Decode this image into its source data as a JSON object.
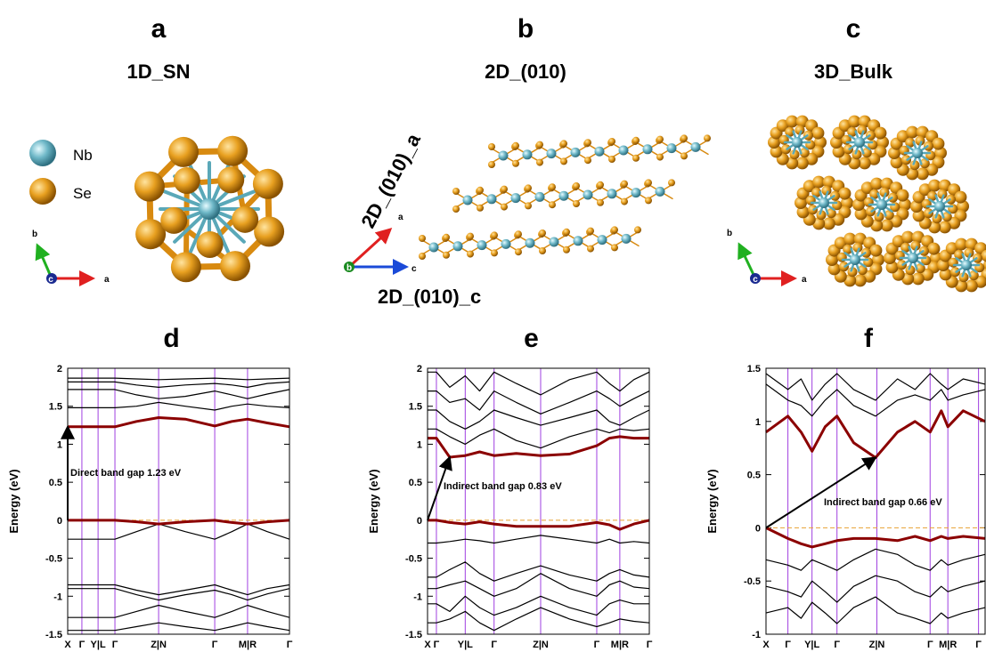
{
  "panels": [
    {
      "letter": "a",
      "title": "1D_SN",
      "legend": [
        "Nb",
        "Se"
      ],
      "axes": [
        "b",
        "c",
        "a"
      ]
    },
    {
      "letter": "b",
      "title": "2D_(010)",
      "axes": [
        "a",
        "b",
        "c"
      ],
      "axis_titles": [
        "2D_(010)_a",
        "2D_(010)_c"
      ]
    },
    {
      "letter": "c",
      "title": "3D_Bulk",
      "axes": [
        "b",
        "c",
        "a"
      ]
    }
  ],
  "chart_data": [
    {
      "type": "line",
      "panel_label": "d",
      "ylabel": "Energy (eV)",
      "annotation": "Direct band gap 1.23 eV",
      "gap_arrow": {
        "from": [
          0,
          0
        ],
        "to": [
          0,
          1.23
        ]
      },
      "fermi_level": 0,
      "fermi_color": "#e8a030",
      "vline_color": "#a040e0",
      "xlim": [
        0,
        1
      ],
      "ylim": [
        -1.5,
        2
      ],
      "xticks": [
        {
          "value": 0,
          "label": "X"
        },
        {
          "value": 0.064,
          "label": "Γ"
        },
        {
          "value": 0.137,
          "label": "Y|L"
        },
        {
          "value": 0.213,
          "label": "Γ"
        },
        {
          "value": 0.41,
          "label": "Z|N"
        },
        {
          "value": 0.663,
          "label": "Γ"
        },
        {
          "value": 0.811,
          "label": "M|R"
        },
        {
          "value": 1,
          "label": "Γ"
        }
      ],
      "yticks": [
        -1.5,
        -1,
        -0.5,
        0,
        0.5,
        1,
        1.5,
        2
      ],
      "x": [
        0,
        0.064,
        0.137,
        0.213,
        0.31,
        0.41,
        0.53,
        0.663,
        0.74,
        0.811,
        0.9,
        1
      ],
      "series": [
        {
          "color": "#8b0000",
          "values": [
            1.23,
            1.23,
            1.23,
            1.23,
            1.3,
            1.35,
            1.33,
            1.24,
            1.3,
            1.33,
            1.28,
            1.23
          ]
        },
        {
          "color": "#8b0000",
          "values": [
            0,
            0,
            0,
            0,
            -0.02,
            -0.05,
            -0.02,
            0,
            -0.03,
            -0.05,
            -0.02,
            0
          ]
        },
        {
          "color": "#000000",
          "values": [
            1.87,
            1.87,
            1.87,
            1.87,
            1.86,
            1.85,
            1.86,
            1.87,
            1.86,
            1.85,
            1.86,
            1.87
          ]
        },
        {
          "color": "#000000",
          "values": [
            1.82,
            1.82,
            1.82,
            1.82,
            1.78,
            1.75,
            1.78,
            1.8,
            1.78,
            1.75,
            1.8,
            1.82
          ]
        },
        {
          "color": "#000000",
          "values": [
            1.72,
            1.72,
            1.72,
            1.72,
            1.65,
            1.6,
            1.63,
            1.7,
            1.65,
            1.6,
            1.66,
            1.72
          ]
        },
        {
          "color": "#000000",
          "values": [
            1.48,
            1.48,
            1.48,
            1.48,
            1.5,
            1.55,
            1.5,
            1.45,
            1.5,
            1.53,
            1.5,
            1.48
          ]
        },
        {
          "color": "#000000",
          "values": [
            -0.25,
            -0.25,
            -0.25,
            -0.25,
            -0.15,
            -0.05,
            -0.15,
            -0.25,
            -0.15,
            -0.05,
            -0.15,
            -0.25
          ]
        },
        {
          "color": "#000000",
          "values": [
            -0.85,
            -0.85,
            -0.85,
            -0.85,
            -0.92,
            -0.98,
            -0.92,
            -0.85,
            -0.92,
            -0.98,
            -0.9,
            -0.85
          ]
        },
        {
          "color": "#000000",
          "values": [
            -0.9,
            -0.9,
            -0.9,
            -0.9,
            -0.98,
            -1.05,
            -0.98,
            -0.92,
            -0.98,
            -1.05,
            -0.97,
            -0.9
          ]
        },
        {
          "color": "#000000",
          "values": [
            -1.28,
            -1.28,
            -1.28,
            -1.28,
            -1.2,
            -1.12,
            -1.2,
            -1.28,
            -1.2,
            -1.12,
            -1.2,
            -1.28
          ]
        },
        {
          "color": "#000000",
          "values": [
            -1.45,
            -1.45,
            -1.45,
            -1.45,
            -1.4,
            -1.35,
            -1.4,
            -1.45,
            -1.4,
            -1.35,
            -1.4,
            -1.45
          ]
        }
      ]
    },
    {
      "type": "line",
      "panel_label": "e",
      "ylabel": "Energy (eV)",
      "annotation": "Indirect band gap 0.83 eV",
      "gap_arrow": {
        "from": [
          0,
          0
        ],
        "to": [
          0.1,
          0.83
        ]
      },
      "fermi_level": 0,
      "fermi_color": "#e8a030",
      "vline_color": "#a040e0",
      "xlim": [
        0,
        1
      ],
      "ylim": [
        -1.5,
        2
      ],
      "xticks": [
        {
          "value": 0,
          "label": "X"
        },
        {
          "value": 0.04,
          "label": "Γ"
        },
        {
          "value": 0.17,
          "label": "Y|L"
        },
        {
          "value": 0.3,
          "label": "Γ"
        },
        {
          "value": 0.51,
          "label": "Z|N"
        },
        {
          "value": 0.763,
          "label": "Γ"
        },
        {
          "value": 0.867,
          "label": "M|R"
        },
        {
          "value": 1,
          "label": "Γ"
        }
      ],
      "yticks": [
        -1.5,
        -1,
        -0.5,
        0,
        0.5,
        1,
        1.5,
        2
      ],
      "x": [
        0,
        0.04,
        0.1,
        0.17,
        0.235,
        0.3,
        0.4,
        0.51,
        0.64,
        0.763,
        0.82,
        0.867,
        0.93,
        1
      ],
      "series": [
        {
          "color": "#8b0000",
          "values": [
            1.08,
            1.08,
            0.83,
            0.85,
            0.9,
            0.85,
            0.88,
            0.85,
            0.87,
            0.98,
            1.08,
            1.1,
            1.08,
            1.08
          ]
        },
        {
          "color": "#8b0000",
          "values": [
            0,
            0,
            -0.03,
            -0.05,
            -0.02,
            -0.05,
            -0.08,
            -0.08,
            -0.08,
            -0.03,
            -0.06,
            -0.12,
            -0.05,
            0
          ]
        },
        {
          "color": "#000000",
          "values": [
            1.95,
            1.95,
            1.75,
            1.9,
            1.7,
            1.95,
            1.8,
            1.65,
            1.85,
            1.95,
            1.8,
            1.7,
            1.85,
            1.95
          ]
        },
        {
          "color": "#000000",
          "values": [
            1.7,
            1.7,
            1.55,
            1.6,
            1.45,
            1.7,
            1.55,
            1.4,
            1.55,
            1.7,
            1.6,
            1.5,
            1.6,
            1.7
          ]
        },
        {
          "color": "#000000",
          "values": [
            1.45,
            1.45,
            1.3,
            1.2,
            1.3,
            1.45,
            1.35,
            1.25,
            1.35,
            1.45,
            1.3,
            1.25,
            1.35,
            1.45
          ]
        },
        {
          "color": "#000000",
          "values": [
            1.2,
            1.2,
            1.1,
            1.0,
            1.12,
            1.2,
            1.05,
            0.95,
            1.1,
            1.2,
            1.15,
            1.2,
            1.18,
            1.2
          ]
        },
        {
          "color": "#000000",
          "values": [
            -0.3,
            -0.3,
            -0.28,
            -0.25,
            -0.27,
            -0.3,
            -0.25,
            -0.2,
            -0.25,
            -0.3,
            -0.25,
            -0.3,
            -0.28,
            -0.3
          ]
        },
        {
          "color": "#000000",
          "values": [
            -0.75,
            -0.75,
            -0.65,
            -0.55,
            -0.7,
            -0.8,
            -0.7,
            -0.6,
            -0.72,
            -0.8,
            -0.7,
            -0.65,
            -0.72,
            -0.75
          ]
        },
        {
          "color": "#000000",
          "values": [
            -0.9,
            -0.9,
            -0.85,
            -0.8,
            -0.9,
            -1.0,
            -0.9,
            -0.7,
            -0.9,
            -1.0,
            -0.85,
            -0.8,
            -0.88,
            -0.9
          ]
        },
        {
          "color": "#000000",
          "values": [
            -1.1,
            -1.1,
            -1.2,
            -1.0,
            -1.15,
            -1.25,
            -1.15,
            -1.0,
            -1.15,
            -1.25,
            -1.1,
            -1.05,
            -1.1,
            -1.1
          ]
        },
        {
          "color": "#000000",
          "values": [
            -1.35,
            -1.35,
            -1.3,
            -1.2,
            -1.35,
            -1.45,
            -1.3,
            -1.15,
            -1.3,
            -1.4,
            -1.35,
            -1.3,
            -1.33,
            -1.35
          ]
        }
      ]
    },
    {
      "type": "line",
      "panel_label": "f",
      "ylabel": "Energy (eV)",
      "annotation": "Indirect band gap 0.66 eV",
      "gap_arrow": {
        "from": [
          0,
          0
        ],
        "to": [
          0.5,
          0.66
        ]
      },
      "fermi_level": 0,
      "fermi_color": "#e8a030",
      "vline_color": "#a040e0",
      "xlim": [
        0,
        1
      ],
      "ylim": [
        -1,
        1.5
      ],
      "xticks": [
        {
          "value": 0,
          "label": "X"
        },
        {
          "value": 0.1,
          "label": "Γ"
        },
        {
          "value": 0.21,
          "label": "Y|L"
        },
        {
          "value": 0.324,
          "label": "Γ"
        },
        {
          "value": 0.506,
          "label": "Z|N"
        },
        {
          "value": 0.749,
          "label": "Γ"
        },
        {
          "value": 0.83,
          "label": "M|R"
        },
        {
          "value": 0.97,
          "label": "Γ"
        }
      ],
      "yticks": [
        -1,
        -0.5,
        0,
        0.5,
        1,
        1.5
      ],
      "x": [
        0,
        0.1,
        0.16,
        0.21,
        0.27,
        0.324,
        0.4,
        0.5,
        0.6,
        0.68,
        0.749,
        0.8,
        0.83,
        0.9,
        1
      ],
      "series": [
        {
          "color": "#8b0000",
          "values": [
            0.9,
            1.05,
            0.9,
            0.72,
            0.95,
            1.05,
            0.8,
            0.66,
            0.9,
            1.0,
            0.9,
            1.1,
            0.95,
            1.1,
            1.0
          ]
        },
        {
          "color": "#8b0000",
          "values": [
            0,
            -0.1,
            -0.15,
            -0.18,
            -0.15,
            -0.12,
            -0.1,
            -0.1,
            -0.12,
            -0.08,
            -0.12,
            -0.08,
            -0.1,
            -0.08,
            -0.1
          ]
        },
        {
          "color": "#000000",
          "values": [
            1.45,
            1.3,
            1.4,
            1.2,
            1.35,
            1.45,
            1.3,
            1.2,
            1.4,
            1.3,
            1.45,
            1.35,
            1.3,
            1.4,
            1.35
          ]
        },
        {
          "color": "#000000",
          "values": [
            1.35,
            1.2,
            1.15,
            1.05,
            1.2,
            1.3,
            1.15,
            1.05,
            1.2,
            1.25,
            1.2,
            1.3,
            1.2,
            1.25,
            1.3
          ]
        },
        {
          "color": "#000000",
          "values": [
            -0.3,
            -0.35,
            -0.4,
            -0.3,
            -0.35,
            -0.4,
            -0.3,
            -0.2,
            -0.25,
            -0.35,
            -0.4,
            -0.3,
            -0.35,
            -0.3,
            -0.25
          ]
        },
        {
          "color": "#000000",
          "values": [
            -0.55,
            -0.6,
            -0.65,
            -0.5,
            -0.6,
            -0.7,
            -0.55,
            -0.45,
            -0.5,
            -0.6,
            -0.65,
            -0.55,
            -0.6,
            -0.55,
            -0.5
          ]
        },
        {
          "color": "#000000",
          "values": [
            -0.8,
            -0.75,
            -0.85,
            -0.7,
            -0.8,
            -0.9,
            -0.75,
            -0.65,
            -0.8,
            -0.85,
            -0.9,
            -0.8,
            -0.85,
            -0.8,
            -0.75
          ]
        }
      ]
    }
  ]
}
